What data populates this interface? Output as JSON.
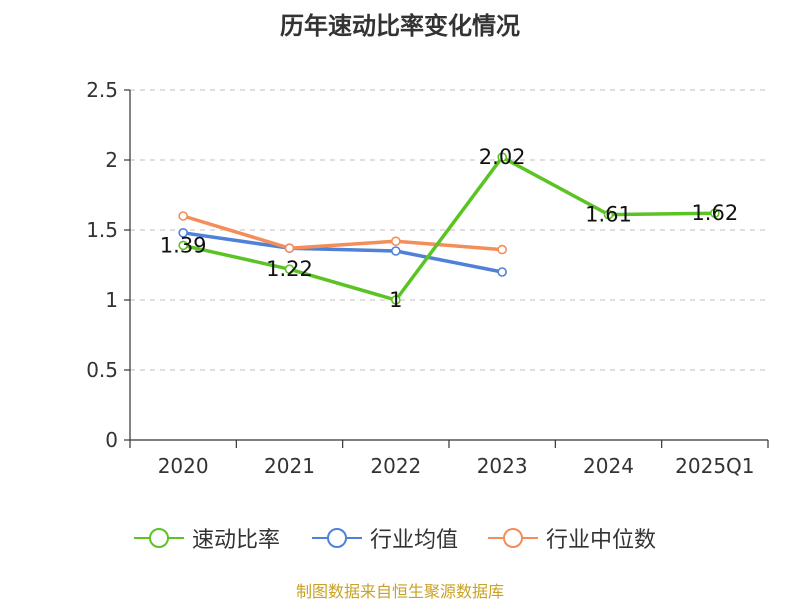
{
  "title": "历年速动比率变化情况",
  "source": "制图数据来自恒生聚源数据库",
  "chart_data": {
    "type": "line",
    "categories": [
      "2020",
      "2021",
      "2022",
      "2023",
      "2024",
      "2025Q1"
    ],
    "ylim": [
      0,
      2.5
    ],
    "yticks": [
      "0",
      "0.5",
      "1",
      "1.5",
      "2",
      "2.5"
    ],
    "grid": true,
    "legend_position": "bottom",
    "series": [
      {
        "name": "速动比率",
        "color": "#5bc424",
        "values": [
          1.39,
          1.22,
          1.0,
          2.02,
          1.61,
          1.62
        ],
        "labels": [
          "1.39",
          "1.22",
          "1",
          "2.02",
          "1.61",
          "1.62"
        ]
      },
      {
        "name": "行业均值",
        "color": "#4f81d9",
        "values": [
          1.48,
          1.37,
          1.35,
          1.2,
          null,
          null
        ]
      },
      {
        "name": "行业中位数",
        "color": "#f58d5a",
        "values": [
          1.6,
          1.37,
          1.42,
          1.36,
          null,
          null
        ]
      }
    ]
  }
}
